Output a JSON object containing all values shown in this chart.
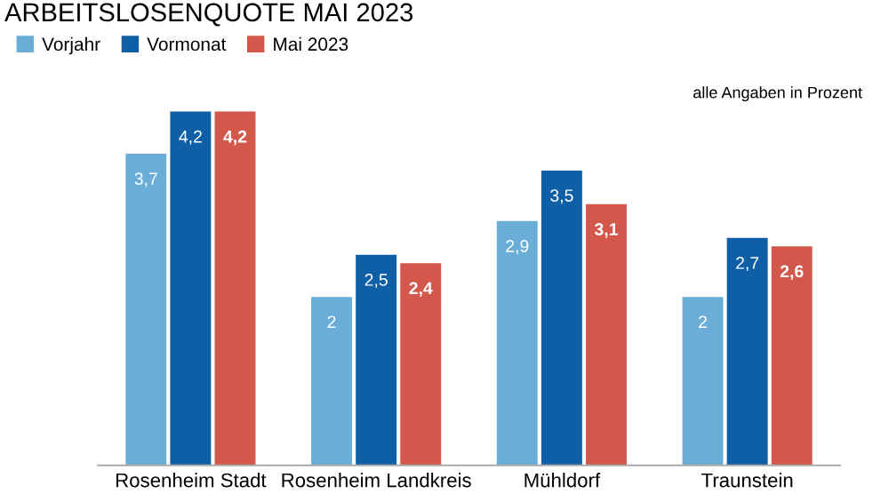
{
  "chart_data": {
    "type": "bar",
    "title": "ARBEITSLOSENQUOTE MAI 2023",
    "categories": [
      "Rosenheim Stadt",
      "Rosenheim Landkreis",
      "Mühldorf",
      "Traunstein"
    ],
    "series": [
      {
        "name": "Vorjahr",
        "color": "#6aaed8",
        "values": [
          3.7,
          2,
          2.9,
          2
        ],
        "value_labels": [
          "3,7",
          "2",
          "2,9",
          "2"
        ]
      },
      {
        "name": "Vormonat",
        "color": "#0f5fa6",
        "values": [
          4.2,
          2.5,
          3.5,
          2.7
        ],
        "value_labels": [
          "4,2",
          "2,5",
          "3,5",
          "2,7"
        ]
      },
      {
        "name": "Mai 2023",
        "color": "#d4574c",
        "values": [
          4.2,
          2.4,
          3.1,
          2.6
        ],
        "value_labels": [
          "4,2",
          "2,4",
          "3,1",
          "2,6"
        ]
      }
    ],
    "tick_labels": "x",
    "grid": false,
    "legend": "top left",
    "annotations": [
      "alle Angaben in Prozent"
    ]
  }
}
